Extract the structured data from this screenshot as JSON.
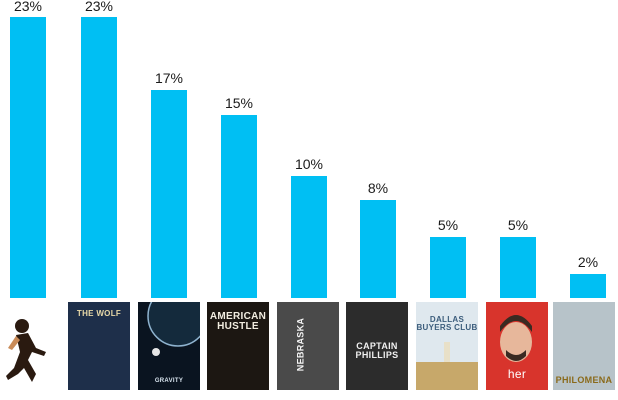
{
  "chart_data": {
    "type": "bar",
    "categories": [
      "12 Years a Slave",
      "The Wolf of Wall Street",
      "Gravity",
      "American Hustle",
      "Nebraska",
      "Captain Phillips",
      "Dallas Buyers Club",
      "Her",
      "Philomena"
    ],
    "values": [
      23,
      23,
      17,
      15,
      10,
      8,
      5,
      5,
      2
    ],
    "value_labels": [
      "23%",
      "23%",
      "17%",
      "15%",
      "10%",
      "8%",
      "5%",
      "5%",
      "2%"
    ],
    "ylim": [
      0,
      23
    ],
    "bar_color": "#00BFF3",
    "grid": false,
    "legend": "none",
    "title": "",
    "xlabel": "",
    "ylabel": ""
  },
  "posters": [
    {
      "id": "12-years",
      "bg": "#ffffff",
      "fg": "#1b1b1b",
      "text": ""
    },
    {
      "id": "wolf",
      "bg": "#1e2f4a",
      "fg": "#e8d9a8",
      "text": "THE WOLF"
    },
    {
      "id": "gravity",
      "bg": "#0a1420",
      "fg": "#d8e4ee",
      "text": "GRAVITY"
    },
    {
      "id": "hustle",
      "bg": "#1c1712",
      "fg": "#f2ede0",
      "text": "AMERICAN HUSTLE"
    },
    {
      "id": "nebraska",
      "bg": "#4a4a4a",
      "fg": "#f4f4f4",
      "text": "NEBRASKA"
    },
    {
      "id": "phillips",
      "bg": "#2c2c2c",
      "fg": "#f0f0f0",
      "text": "CAPTAIN PHILLIPS"
    },
    {
      "id": "dallas",
      "bg": "#dfe8ee",
      "fg": "#3c5d7c",
      "text": "DALLAS BUYERS CLUB"
    },
    {
      "id": "her",
      "bg": "#d8342c",
      "fg": "#ffffff",
      "text": "her"
    },
    {
      "id": "philomena",
      "bg": "#b7c3c9",
      "fg": "#8a6a1a",
      "text": "PHILOMENA"
    }
  ]
}
